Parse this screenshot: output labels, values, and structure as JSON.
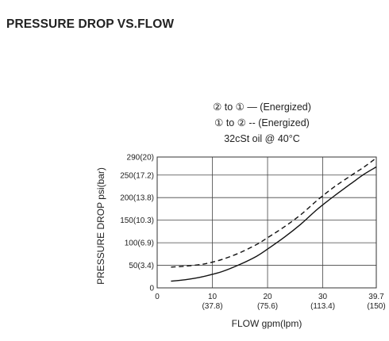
{
  "heading": "PRESSURE DROP VS.FLOW",
  "chart_data": {
    "type": "line",
    "title": "",
    "legend": [
      {
        "text": "② to ① — (Energized)",
        "series": "solid"
      },
      {
        "text": "① to ② -- (Energized)",
        "series": "dashed"
      }
    ],
    "note": "32cSt oil @ 40°C",
    "xlabel": "FLOW gpm(lpm)",
    "ylabel": "PRESSURE DROP psi(bar)",
    "xlim": [
      0,
      39.7
    ],
    "ylim": [
      0,
      290
    ],
    "grid": true,
    "x_ticks": [
      {
        "value": 0,
        "line1": "0",
        "line2": ""
      },
      {
        "value": 10,
        "line1": "10",
        "line2": "(37.8)"
      },
      {
        "value": 20,
        "line1": "20",
        "line2": "(75.6)"
      },
      {
        "value": 30,
        "line1": "30",
        "line2": "(113.4)"
      },
      {
        "value": 39.7,
        "line1": "39.7",
        "line2": "(150)"
      }
    ],
    "y_ticks": [
      {
        "value": 0,
        "label": "0"
      },
      {
        "value": 50,
        "label": "50(3.4)"
      },
      {
        "value": 100,
        "label": "100(6.9)"
      },
      {
        "value": 150,
        "label": "150(10.3)"
      },
      {
        "value": 200,
        "label": "200(13.8)"
      },
      {
        "value": 250,
        "label": "250(17.2)"
      },
      {
        "value": 290,
        "label": "290(20)"
      }
    ],
    "series": [
      {
        "style": "solid",
        "x": [
          2.5,
          5,
          8,
          10,
          12,
          15,
          18,
          20,
          23,
          26,
          29,
          32,
          35,
          37.5,
          39.7
        ],
        "y": [
          15,
          18,
          24,
          30,
          37,
          52,
          70,
          86,
          112,
          141,
          174,
          203,
          230,
          252,
          268
        ]
      },
      {
        "style": "dashed",
        "x": [
          2.5,
          5,
          8,
          10,
          12,
          15,
          18,
          20,
          23,
          26,
          29,
          32,
          35,
          37.5,
          39.7
        ],
        "y": [
          46,
          48,
          52,
          57,
          64,
          78,
          96,
          111,
          135,
          162,
          194,
          223,
          248,
          268,
          288
        ]
      }
    ]
  }
}
